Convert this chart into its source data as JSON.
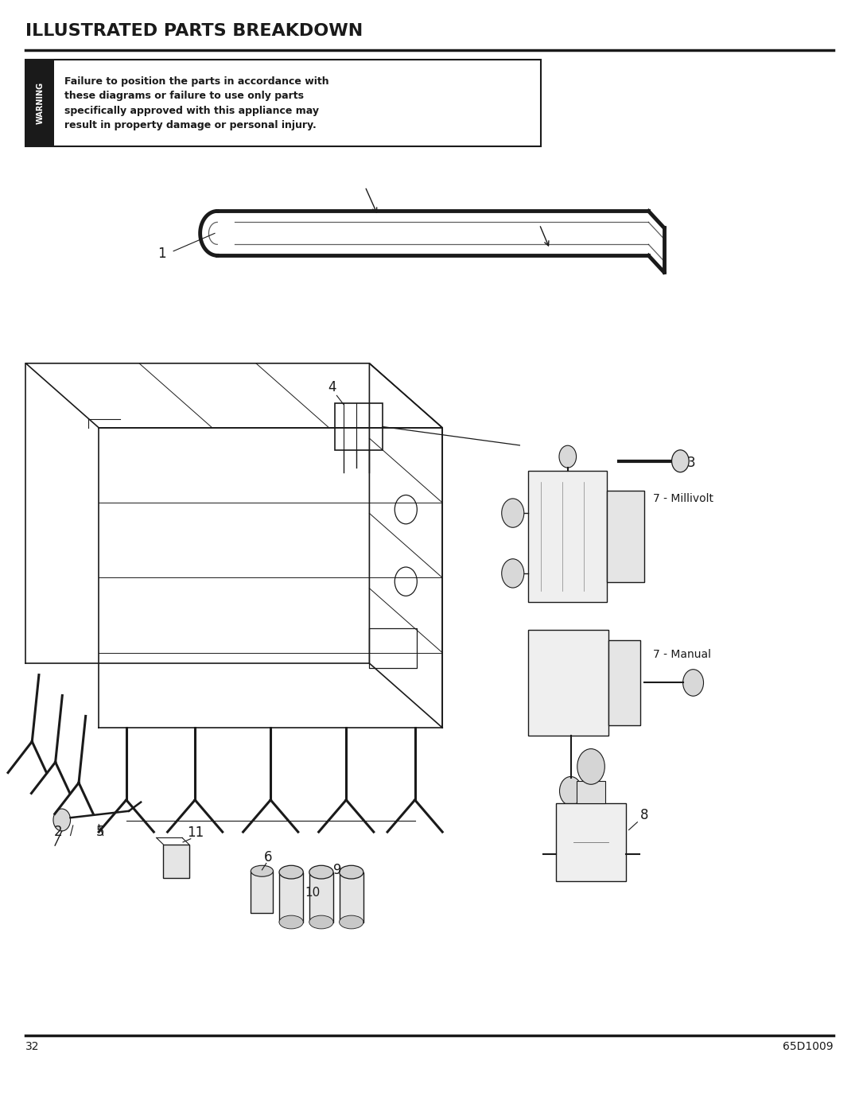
{
  "title": "ILLUSTRATED PARTS BREAKDOWN",
  "warning_line1": "Failure to position the parts in accordance with",
  "warning_line2": "these diagrams or failure to use only parts",
  "warning_line3": "specifically approved with this appliance may",
  "warning_line4": "result in property damage or personal injury.",
  "warning_label": "WARNING",
  "label_7_millivolt": "7 - Millivolt",
  "label_7_manual": "7 - Manual",
  "page_number": "32",
  "doc_number": "65D1009",
  "bg_color": "#ffffff",
  "text_color": "#1a1a1a",
  "line_color": "#1a1a1a",
  "figsize": [
    10.8,
    13.97
  ],
  "dpi": 100
}
